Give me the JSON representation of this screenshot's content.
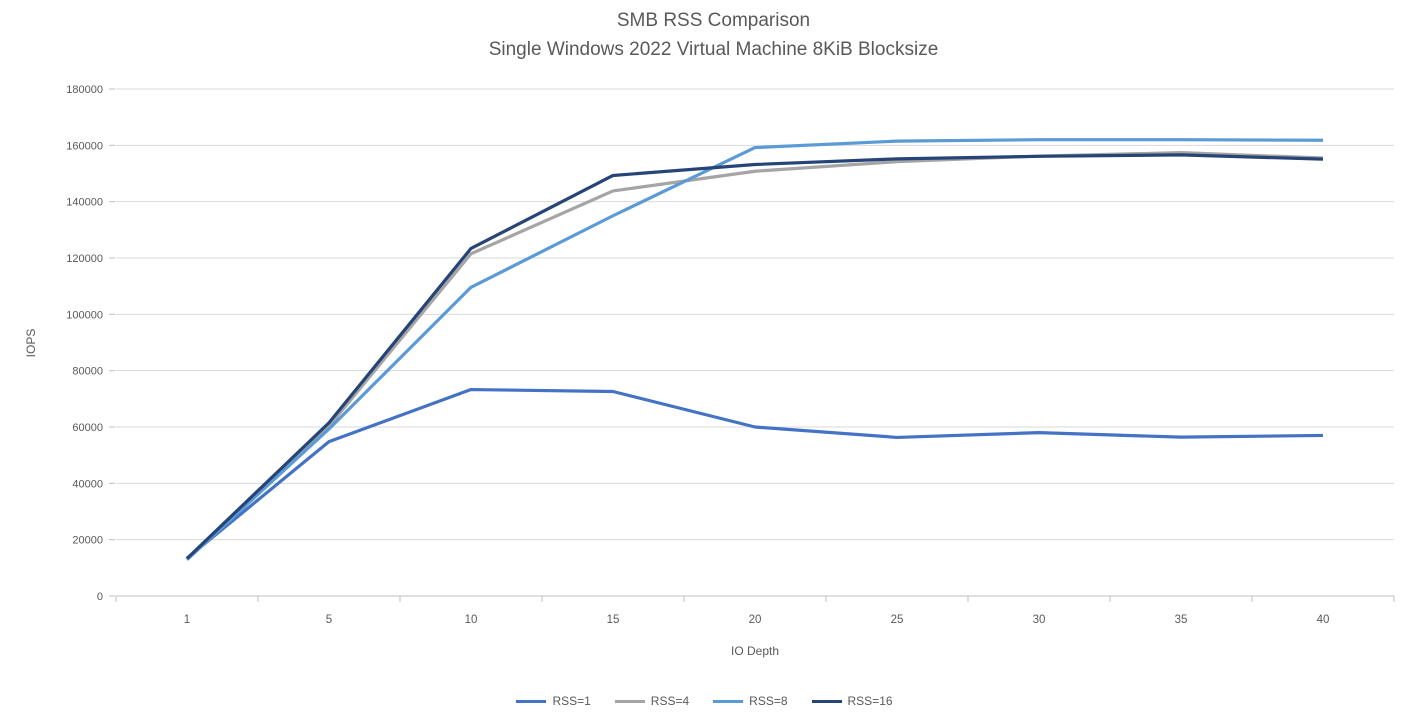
{
  "chart_data": {
    "type": "line",
    "title": "SMB RSS Comparison",
    "subtitle": "Single Windows 2022 Virtual Machine 8KiB Blocksize",
    "xlabel": "IO Depth",
    "ylabel": "IOPS",
    "categories": [
      1,
      5,
      10,
      15,
      20,
      25,
      30,
      35,
      40
    ],
    "ylim": [
      0,
      180000
    ],
    "yticks": [
      0,
      20000,
      40000,
      60000,
      80000,
      100000,
      120000,
      140000,
      160000,
      180000
    ],
    "grid": "horizontal-solid",
    "legend_position": "bottom-center",
    "series": [
      {
        "name": "RSS=1",
        "color": "#4472C4",
        "values": [
          13400,
          54800,
          73300,
          72600,
          60000,
          56300,
          58000,
          56400,
          57000
        ]
      },
      {
        "name": "RSS=4",
        "color": "#A5A5A5",
        "values": [
          13100,
          60300,
          121500,
          143800,
          150800,
          154200,
          156200,
          157400,
          155500
        ]
      },
      {
        "name": "RSS=8",
        "color": "#5B9BD5",
        "values": [
          12900,
          59300,
          109600,
          135000,
          159200,
          161500,
          162000,
          162000,
          161800
        ]
      },
      {
        "name": "RSS=16",
        "color": "#264478",
        "values": [
          13300,
          61500,
          123400,
          149300,
          153200,
          155200,
          156100,
          156600,
          155100
        ]
      }
    ],
    "style": {
      "grid_color": "#D9D9D9",
      "axis_line_color": "#BFBFBF",
      "text_color": "#595959",
      "background": "#FFFFFF"
    }
  }
}
